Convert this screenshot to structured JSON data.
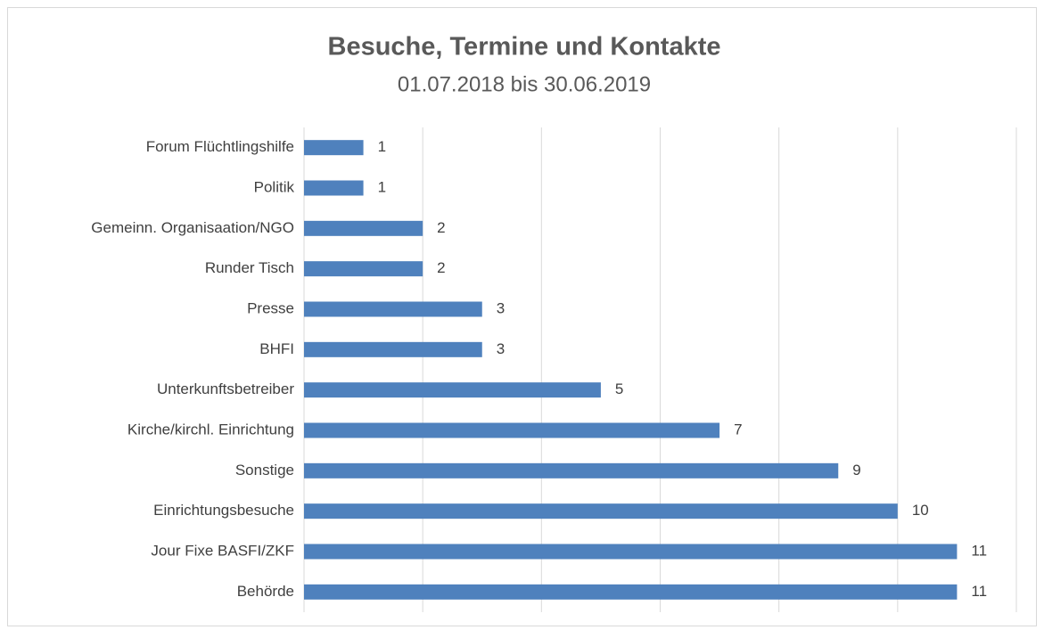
{
  "chart_data": {
    "type": "bar",
    "orientation": "horizontal",
    "title": "Besuche, Termine und Kontakte",
    "subtitle": "01.07.2018 bis 30.06.2019",
    "categories": [
      "Forum Flüchtlingshilfe",
      "Politik",
      "Gemeinn. Organisaation/NGO",
      "Runder Tisch",
      "Presse",
      "BHFI",
      "Unterkunftsbetreiber",
      "Kirche/kirchl. Einrichtung",
      "Sonstige",
      "Einrichtungsbesuche",
      "Jour Fixe BASFI/ZKF",
      "Behörde"
    ],
    "values": [
      1,
      1,
      2,
      2,
      3,
      3,
      5,
      7,
      9,
      10,
      11,
      11
    ],
    "color": "#4f81bd",
    "xlim": [
      0,
      12
    ],
    "xticks": [
      0,
      2,
      4,
      6,
      8,
      10,
      12
    ],
    "grid": true
  }
}
